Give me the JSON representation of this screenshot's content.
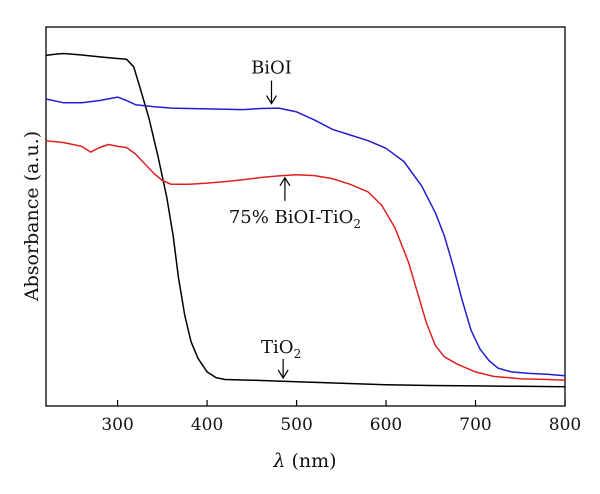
{
  "chart_data": {
    "type": "line",
    "title": "",
    "xlabel_symbol": "λ",
    "xlabel_unit": " (nm)",
    "ylabel": "Absorbance (a.u.)",
    "xlim": [
      220,
      800
    ],
    "ylim": [
      0,
      1
    ],
    "x_ticks": [
      300,
      400,
      500,
      600,
      700,
      800
    ],
    "x_tick_labels": [
      "300",
      "400",
      "500",
      "600",
      "700",
      "800"
    ],
    "y_ticks_labeled": false,
    "grid": false,
    "series": [
      {
        "name": "TiO2",
        "color": "#000000",
        "points": [
          [
            220,
            0.925
          ],
          [
            230,
            0.928
          ],
          [
            240,
            0.93
          ],
          [
            260,
            0.926
          ],
          [
            280,
            0.921
          ],
          [
            300,
            0.917
          ],
          [
            310,
            0.915
          ],
          [
            318,
            0.895
          ],
          [
            325,
            0.84
          ],
          [
            335,
            0.76
          ],
          [
            345,
            0.66
          ],
          [
            355,
            0.55
          ],
          [
            362,
            0.45
          ],
          [
            368,
            0.34
          ],
          [
            375,
            0.24
          ],
          [
            382,
            0.17
          ],
          [
            390,
            0.125
          ],
          [
            400,
            0.09
          ],
          [
            410,
            0.075
          ],
          [
            420,
            0.07
          ],
          [
            450,
            0.068
          ],
          [
            500,
            0.064
          ],
          [
            550,
            0.06
          ],
          [
            600,
            0.056
          ],
          [
            650,
            0.054
          ],
          [
            700,
            0.053
          ],
          [
            750,
            0.052
          ],
          [
            800,
            0.051
          ]
        ]
      },
      {
        "name": "BiOI",
        "color": "#1f1fd0",
        "points": [
          [
            220,
            0.81
          ],
          [
            240,
            0.8
          ],
          [
            260,
            0.8
          ],
          [
            280,
            0.806
          ],
          [
            300,
            0.815
          ],
          [
            310,
            0.806
          ],
          [
            320,
            0.795
          ],
          [
            340,
            0.79
          ],
          [
            360,
            0.786
          ],
          [
            380,
            0.785
          ],
          [
            400,
            0.784
          ],
          [
            420,
            0.783
          ],
          [
            440,
            0.782
          ],
          [
            460,
            0.785
          ],
          [
            480,
            0.786
          ],
          [
            500,
            0.776
          ],
          [
            520,
            0.755
          ],
          [
            540,
            0.73
          ],
          [
            560,
            0.715
          ],
          [
            580,
            0.7
          ],
          [
            600,
            0.68
          ],
          [
            620,
            0.645
          ],
          [
            640,
            0.58
          ],
          [
            655,
            0.51
          ],
          [
            665,
            0.45
          ],
          [
            675,
            0.37
          ],
          [
            685,
            0.28
          ],
          [
            695,
            0.2
          ],
          [
            705,
            0.15
          ],
          [
            715,
            0.12
          ],
          [
            725,
            0.1
          ],
          [
            740,
            0.09
          ],
          [
            760,
            0.086
          ],
          [
            780,
            0.084
          ],
          [
            800,
            0.08
          ]
        ]
      },
      {
        "name": "75% BiOI-TiO2",
        "color": "#e02020",
        "points": [
          [
            220,
            0.7
          ],
          [
            240,
            0.695
          ],
          [
            260,
            0.685
          ],
          [
            270,
            0.67
          ],
          [
            280,
            0.682
          ],
          [
            290,
            0.69
          ],
          [
            300,
            0.685
          ],
          [
            310,
            0.682
          ],
          [
            320,
            0.665
          ],
          [
            330,
            0.64
          ],
          [
            340,
            0.615
          ],
          [
            350,
            0.595
          ],
          [
            360,
            0.585
          ],
          [
            380,
            0.585
          ],
          [
            400,
            0.588
          ],
          [
            420,
            0.592
          ],
          [
            440,
            0.597
          ],
          [
            460,
            0.603
          ],
          [
            480,
            0.607
          ],
          [
            500,
            0.61
          ],
          [
            520,
            0.608
          ],
          [
            540,
            0.6
          ],
          [
            560,
            0.585
          ],
          [
            580,
            0.565
          ],
          [
            595,
            0.53
          ],
          [
            610,
            0.47
          ],
          [
            625,
            0.38
          ],
          [
            635,
            0.3
          ],
          [
            645,
            0.22
          ],
          [
            655,
            0.16
          ],
          [
            665,
            0.13
          ],
          [
            680,
            0.11
          ],
          [
            700,
            0.09
          ],
          [
            720,
            0.078
          ],
          [
            750,
            0.072
          ],
          [
            780,
            0.07
          ],
          [
            800,
            0.068
          ]
        ]
      }
    ],
    "annotations": [
      {
        "label": "BiOI",
        "x": 472,
        "y": 0.79
      },
      {
        "label_main": "75% BiOI-TiO",
        "label_sub": "2",
        "x": 487,
        "y": 0.61
      },
      {
        "label_main": "TiO",
        "label_sub": "2",
        "x": 485,
        "y": 0.066
      }
    ]
  }
}
